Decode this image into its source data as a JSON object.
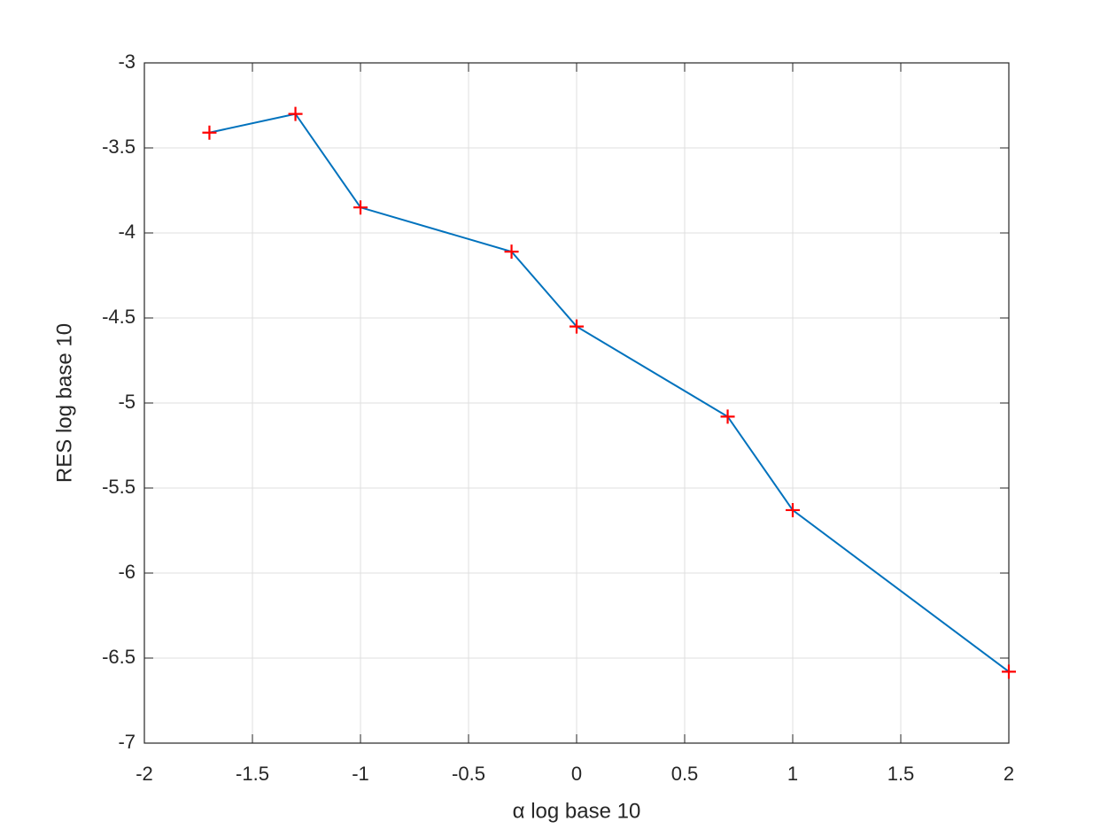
{
  "chart_data": {
    "type": "line",
    "xlabel": "α log base 10",
    "ylabel": "RES log base 10",
    "x": [
      -1.699,
      -1.301,
      -1,
      -0.301,
      0,
      0.699,
      1,
      2
    ],
    "values": [
      -3.41,
      -3.3,
      -3.85,
      -4.11,
      -4.55,
      -5.08,
      -5.63,
      -6.58
    ],
    "color": "#0072bd",
    "marker_color": "#ff0000",
    "marker": "+",
    "xlim": [
      -2,
      2
    ],
    "ylim": [
      -7,
      -3
    ],
    "xticks": [
      -2,
      -1.5,
      -1,
      -0.5,
      0,
      0.5,
      1,
      1.5,
      2
    ],
    "yticks": [
      -7,
      -6.5,
      -6,
      -5.5,
      -5,
      -4.5,
      -4,
      -3.5,
      -3
    ],
    "grid": true
  }
}
